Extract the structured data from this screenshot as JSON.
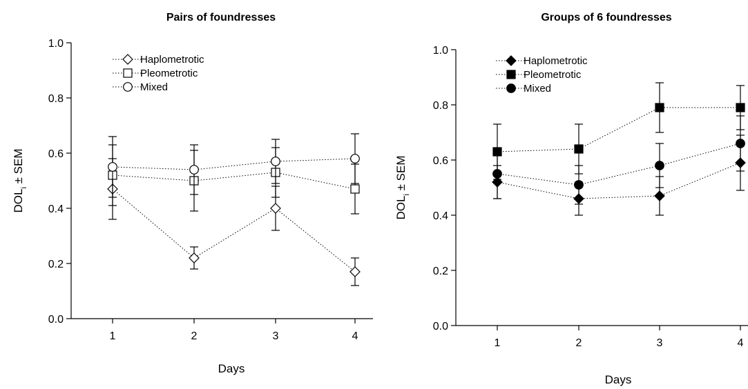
{
  "chart_data": [
    {
      "type": "line",
      "title": "Pairs of foundresses",
      "xlabel": "Days",
      "ylabel_main": "DOL",
      "ylabel_sub": "i",
      "ylabel_rest": " ± SEM",
      "x": [
        1,
        2,
        3,
        4
      ],
      "x_ticks": [
        "1",
        "2",
        "3",
        "4"
      ],
      "ylim": [
        0.0,
        1.0
      ],
      "y_ticks": [
        "0.0",
        "0.2",
        "0.4",
        "0.6",
        "0.8",
        "1.0"
      ],
      "grid": false,
      "legend_position": "top-left",
      "series": [
        {
          "name": "Haplometrotic",
          "marker": "diamond",
          "filled": false,
          "values": [
            0.47,
            0.22,
            0.4,
            0.17
          ],
          "errors": [
            0.11,
            0.04,
            0.08,
            0.05
          ]
        },
        {
          "name": "Pleometrotic",
          "marker": "square",
          "filled": false,
          "values": [
            0.52,
            0.5,
            0.53,
            0.47
          ],
          "errors": [
            0.11,
            0.11,
            0.09,
            0.09
          ]
        },
        {
          "name": "Mixed",
          "marker": "circle",
          "filled": false,
          "values": [
            0.55,
            0.54,
            0.57,
            0.58
          ],
          "errors": [
            0.11,
            0.09,
            0.08,
            0.09
          ]
        }
      ]
    },
    {
      "type": "line",
      "title": "Groups of 6 foundresses",
      "xlabel": "Days",
      "ylabel_main": "DOL",
      "ylabel_sub": "i",
      "ylabel_rest": " ± SEM",
      "x": [
        1,
        2,
        3,
        4
      ],
      "x_ticks": [
        "1",
        "2",
        "3",
        "4"
      ],
      "ylim": [
        0.0,
        1.0
      ],
      "y_ticks": [
        "0.0",
        "0.2",
        "0.4",
        "0.6",
        "0.8",
        "1.0"
      ],
      "grid": false,
      "legend_position": "top-left",
      "series": [
        {
          "name": "Haplometrotic",
          "marker": "diamond",
          "filled": true,
          "values": [
            0.52,
            0.46,
            0.47,
            0.59
          ],
          "errors": [
            0.06,
            0.06,
            0.07,
            0.1
          ]
        },
        {
          "name": "Pleometrotic",
          "marker": "square",
          "filled": true,
          "values": [
            0.63,
            0.64,
            0.79,
            0.79
          ],
          "errors": [
            0.1,
            0.09,
            0.09,
            0.08
          ]
        },
        {
          "name": "Mixed",
          "marker": "circle",
          "filled": true,
          "values": [
            0.55,
            0.51,
            0.58,
            0.66
          ],
          "errors": [
            0.09,
            0.07,
            0.08,
            0.1
          ]
        }
      ]
    }
  ]
}
